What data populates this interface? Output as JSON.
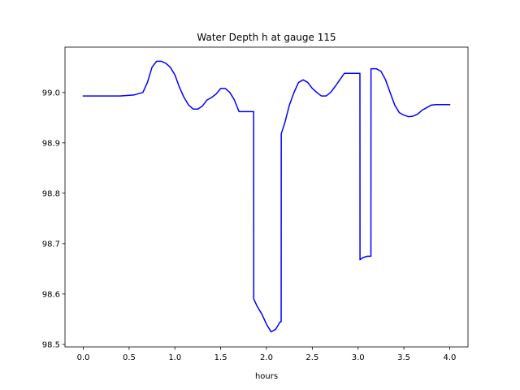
{
  "chart_data": {
    "type": "line",
    "title": "Water Depth h at gauge 115",
    "xlabel": "hours",
    "ylabel": "",
    "xlim": [
      -0.2,
      4.2
    ],
    "ylim": [
      98.495,
      99.09
    ],
    "grid": false,
    "xticks": [
      0.0,
      0.5,
      1.0,
      1.5,
      2.0,
      2.5,
      3.0,
      3.5,
      4.0
    ],
    "xtick_labels": [
      "0.0",
      "0.5",
      "1.0",
      "1.5",
      "2.0",
      "2.5",
      "3.0",
      "3.5",
      "4.0"
    ],
    "yticks": [
      98.5,
      98.6,
      98.7,
      98.8,
      98.9,
      99.0
    ],
    "ytick_labels": [
      "98.5",
      "98.6",
      "98.7",
      "98.8",
      "98.9",
      "99.0"
    ],
    "series": [
      {
        "color": "#0000ff",
        "x": [
          0.0,
          0.2,
          0.4,
          0.55,
          0.65,
          0.7,
          0.75,
          0.8,
          0.85,
          0.9,
          0.95,
          1.0,
          1.05,
          1.1,
          1.15,
          1.2,
          1.25,
          1.3,
          1.35,
          1.4,
          1.45,
          1.5,
          1.55,
          1.6,
          1.65,
          1.7,
          1.75,
          1.8,
          1.86,
          1.861,
          1.9,
          1.95,
          2.0,
          2.05,
          2.1,
          2.15,
          2.16,
          2.161,
          2.2,
          2.25,
          2.3,
          2.35,
          2.4,
          2.45,
          2.5,
          2.55,
          2.6,
          2.65,
          2.7,
          2.75,
          2.8,
          2.85,
          2.9,
          2.95,
          3.02,
          3.021,
          3.05,
          3.1,
          3.14,
          3.141,
          3.2,
          3.25,
          3.3,
          3.35,
          3.4,
          3.45,
          3.5,
          3.55,
          3.6,
          3.65,
          3.7,
          3.75,
          3.8,
          3.85,
          3.9,
          3.95,
          4.0
        ],
        "y": [
          98.993,
          98.993,
          98.993,
          98.995,
          99.0,
          99.02,
          99.05,
          99.062,
          99.062,
          99.058,
          99.05,
          99.035,
          99.01,
          98.99,
          98.975,
          98.967,
          98.967,
          98.973,
          98.985,
          98.99,
          98.997,
          99.008,
          99.008,
          99.0,
          98.985,
          98.962,
          98.962,
          98.962,
          98.962,
          98.59,
          98.575,
          98.56,
          98.54,
          98.525,
          98.53,
          98.545,
          98.545,
          98.918,
          98.94,
          98.975,
          99.0,
          99.02,
          99.025,
          99.02,
          99.008,
          99.0,
          98.993,
          98.993,
          99.0,
          99.012,
          99.025,
          99.038,
          99.038,
          99.038,
          99.038,
          98.668,
          98.672,
          98.675,
          98.675,
          99.047,
          99.047,
          99.042,
          99.025,
          99.0,
          98.975,
          98.96,
          98.955,
          98.952,
          98.953,
          98.957,
          98.965,
          98.97,
          98.975,
          98.976,
          98.976,
          98.976,
          98.976
        ]
      }
    ]
  }
}
